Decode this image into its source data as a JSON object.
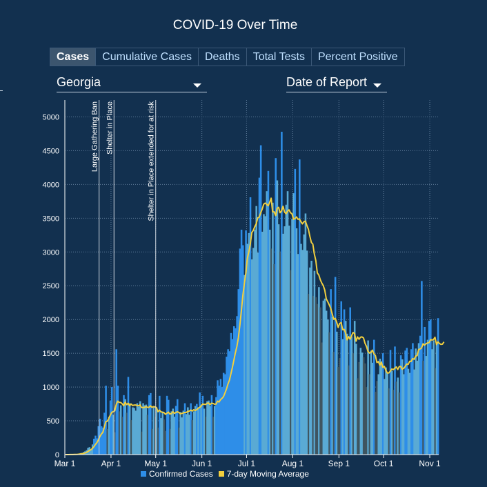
{
  "title": "COVID-19 Over Time",
  "tabs": [
    {
      "label": "Cases",
      "active": true
    },
    {
      "label": "Cumulative Cases",
      "active": false
    },
    {
      "label": "Deaths",
      "active": false
    },
    {
      "label": "Total Tests",
      "active": false
    },
    {
      "label": "Percent Positive",
      "active": false
    }
  ],
  "filters": {
    "region": "Georgia",
    "date_type": "Date of Report"
  },
  "colors": {
    "bar": "#5aaad4",
    "bar_spike": "#2e8ee8",
    "bar_dip": "#3f5560",
    "moving_average": "#f2cf3e",
    "grid": "#5d7a98",
    "annotation_line": "#d0d8e0"
  },
  "chart_data": {
    "type": "bar",
    "x_start": "2020-03-01",
    "x_end": "2020-11-07",
    "xticks": [
      "Mar 1",
      "Apr 1",
      "May 1",
      "Jun 1",
      "Jul 1",
      "Aug 1",
      "Sep 1",
      "Oct 1",
      "Nov 1"
    ],
    "xtick_dates": [
      "2020-03-01",
      "2020-04-01",
      "2020-05-01",
      "2020-06-01",
      "2020-07-01",
      "2020-08-01",
      "2020-09-01",
      "2020-10-01",
      "2020-11-01"
    ],
    "ylim": [
      0,
      5250
    ],
    "yticks": [
      0,
      500,
      1000,
      1500,
      2000,
      2500,
      3000,
      3500,
      4000,
      4500,
      5000
    ],
    "grid": true,
    "annotations": [
      {
        "date": "2020-03-24",
        "label": "Large Gathering Ban"
      },
      {
        "date": "2020-04-03",
        "label": "Shelter in Place"
      },
      {
        "date": "2020-05-01",
        "label": "Shelter in Place extended for at risk"
      }
    ],
    "series": [
      {
        "name": "Confirmed Cases",
        "x_start": "2020-03-01",
        "values": [
          0,
          0,
          0,
          2,
          3,
          2,
          5,
          8,
          10,
          14,
          22,
          25,
          38,
          48,
          65,
          100,
          110,
          70,
          150,
          235,
          280,
          240,
          420,
          530,
          420,
          400,
          620,
          1020,
          380,
          560,
          800,
          1000,
          590,
          330,
          1560,
          1020,
          640,
          730,
          560,
          880,
          820,
          620,
          1150,
          760,
          510,
          700,
          690,
          650,
          760,
          710,
          790,
          340,
          760,
          730,
          740,
          590,
          880,
          910,
          380,
          720,
          560,
          690,
          400,
          870,
          540,
          640,
          520,
          350,
          870,
          810,
          380,
          640,
          680,
          560,
          720,
          820,
          400,
          630,
          550,
          650,
          760,
          600,
          700,
          590,
          760,
          510,
          640,
          720,
          750,
          700,
          920,
          740,
          870,
          680,
          560,
          790,
          800,
          720,
          880,
          560,
          720,
          850,
          1100,
          1020,
          1120,
          1000,
          1210,
          1190,
          1450,
          1560,
          1530,
          1800,
          1710,
          1900,
          1870,
          2050,
          2450,
          3050,
          3330,
          3100,
          2660,
          3320,
          3120,
          3280,
          3810,
          2890,
          3060,
          3330,
          3680,
          2990,
          4100,
          4580,
          3300,
          3560,
          3530,
          3900,
          4200,
          3330,
          3050,
          3730,
          2820,
          4390,
          4060,
          3410,
          3000,
          4780,
          3270,
          3380,
          3700,
          3900,
          3390,
          2730,
          3490,
          3870,
          4230,
          3350,
          2970,
          4370,
          3120,
          3030,
          3260,
          3570,
          3020,
          2380,
          2770,
          2870,
          2350,
          2720,
          2330,
          2230,
          2480,
          2180,
          1660,
          2280,
          2310,
          2130,
          2000,
          1810,
          2450,
          2040,
          1520,
          2630,
          1820,
          1300,
          1430,
          2270,
          1710,
          2150,
          1980,
          1790,
          1320,
          2180,
          1750,
          1500,
          1980,
          1640,
          1130,
          1370,
          1580,
          1510,
          1440,
          1350,
          1000,
          1690,
          1190,
          1540,
          1360,
          1700,
          930,
          1090,
          1190,
          1420,
          1380,
          1500,
          1120,
          1290,
          1200,
          980,
          1550,
          1240,
          960,
          1600,
          1080,
          1140,
          920,
          1470,
          1410,
          1190,
          1540,
          1580,
          1270,
          1210,
          1560,
          1650,
          1260,
          1570,
          1390,
          1650,
          1760,
          2570,
          1390,
          1890,
          1460,
          1700,
          1980,
          2000,
          1560,
          1690,
          1280,
          1640,
          2020
        ]
      },
      {
        "name": "7-day Moving Average",
        "x_start": "2020-03-01",
        "values": [
          0,
          0,
          0,
          1,
          1,
          1,
          2,
          3,
          4,
          6,
          9,
          12,
          17,
          23,
          32,
          45,
          60,
          73,
          90,
          116,
          150,
          176,
          216,
          265,
          303,
          330,
          403,
          486,
          494,
          534,
          584,
          625,
          635,
          648,
          744,
          791,
          773,
          771,
          753,
          723,
          776,
          740,
          760,
          724,
          749,
          726,
          733,
          734,
          727,
          723,
          737,
          697,
          697,
          699,
          711,
          700,
          699,
          722,
          700,
          709,
          706,
          697,
          635,
          659,
          634,
          624,
          623,
          597,
          611,
          629,
          602,
          606,
          634,
          611,
          623,
          633,
          625,
          606,
          609,
          617,
          623,
          624,
          637,
          643,
          660,
          646,
          664,
          653,
          664,
          687,
          698,
          720,
          748,
          745,
          742,
          760,
          763,
          741,
          761,
          757,
          746,
          748,
          792,
          778,
          813,
          832,
          858,
          912,
          970,
          1046,
          1101,
          1197,
          1290,
          1400,
          1506,
          1601,
          1731,
          1912,
          2127,
          2349,
          2528,
          2685,
          2905,
          2995,
          3111,
          3287,
          3319,
          3375,
          3418,
          3504,
          3517,
          3581,
          3633,
          3707,
          3724,
          3705,
          3684,
          3733,
          3797,
          3595,
          3594,
          3539,
          3645,
          3662,
          3581,
          3608,
          3676,
          3591,
          3567,
          3601,
          3624,
          3582,
          3565,
          3484,
          3493,
          3520,
          3484,
          3490,
          3448,
          3416,
          3447,
          3456,
          3394,
          3336,
          3233,
          3141,
          3116,
          2969,
          2870,
          2689,
          2659,
          2590,
          2539,
          2502,
          2436,
          2305,
          2264,
          2216,
          2166,
          2084,
          2003,
          2018,
          1960,
          1883,
          1942,
          1954,
          1849,
          1854,
          1804,
          1699,
          1747,
          1709,
          1761,
          1808,
          1794,
          1679,
          1742,
          1708,
          1737,
          1743,
          1727,
          1650,
          1601,
          1530,
          1504,
          1512,
          1546,
          1491,
          1468,
          1364,
          1377,
          1324,
          1369,
          1291,
          1305,
          1248,
          1208,
          1209,
          1235,
          1268,
          1257,
          1277,
          1298,
          1260,
          1303,
          1304,
          1265,
          1278,
          1305,
          1341,
          1335,
          1381,
          1380,
          1422,
          1412,
          1458,
          1466,
          1553,
          1564,
          1580,
          1640,
          1620,
          1641,
          1653,
          1657,
          1702,
          1697,
          1703,
          1737,
          1629,
          1669,
          1645,
          1631,
          1635,
          1669
        ]
      }
    ],
    "legend": {
      "placement": "bottom",
      "entries": [
        "Confirmed Cases",
        "7-day Moving Average"
      ]
    }
  }
}
